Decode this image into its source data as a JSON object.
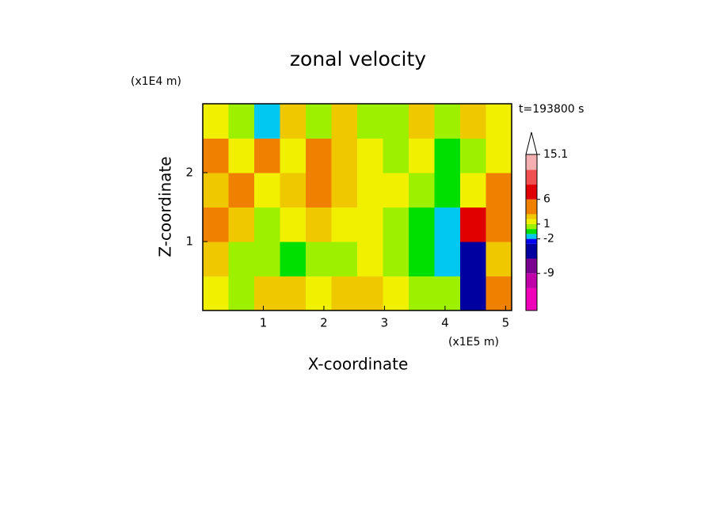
{
  "chart_data": {
    "type": "contour",
    "title": "zonal velocity",
    "x_label": "X-coordinate",
    "y_label": "Z-coordinate",
    "x_unit": "(x1E5 m)",
    "y_unit": "(x1E4 m)",
    "time_label": "t=193800 s",
    "xlim": [
      0,
      5.1
    ],
    "ylim": [
      0,
      3
    ],
    "xticks": [
      1,
      2,
      3,
      4,
      5
    ],
    "yticks": [
      1,
      2
    ],
    "x": [
      0.2125,
      0.6375,
      1.0625,
      1.4875,
      1.9125,
      2.3375,
      2.7625,
      3.1875,
      3.6125,
      4.0375,
      4.4625,
      4.8875
    ],
    "y": [
      0.25,
      0.75,
      1.25,
      1.75,
      2.25,
      2.75
    ],
    "z": [
      [
        1,
        0,
        2,
        2,
        1,
        2,
        2,
        1,
        0,
        0,
        -5,
        3
      ],
      [
        2,
        0,
        0,
        -1,
        0,
        0,
        1,
        0,
        -1,
        -2,
        -6,
        2
      ],
      [
        4,
        2,
        0,
        1,
        2,
        1,
        1,
        0,
        -1,
        -2,
        8,
        4
      ],
      [
        2,
        3,
        1,
        2,
        3,
        2,
        1,
        1,
        0,
        -1,
        1,
        3
      ],
      [
        3,
        1,
        4,
        1,
        4,
        2,
        1,
        0,
        1,
        -1,
        0,
        1
      ],
      [
        1,
        0,
        -2,
        2,
        0,
        2,
        0,
        0,
        2,
        0,
        2,
        1
      ]
    ],
    "levels": [
      -16.5,
      -12,
      -9,
      -6,
      -3,
      -2,
      -1,
      0,
      1,
      2,
      3,
      6,
      9,
      12,
      15.1
    ],
    "colors": [
      "#f000b8",
      "#c000a8",
      "#7a0090",
      "#0000a0",
      "#0000f0",
      "#00c8f0",
      "#00e000",
      "#9cf000",
      "#f0f000",
      "#f0c800",
      "#f08000",
      "#e00000",
      "#f05050",
      "#f4b0b0"
    ],
    "colorbar_ticks": [
      15.1,
      6,
      1,
      -2,
      -9
    ]
  }
}
